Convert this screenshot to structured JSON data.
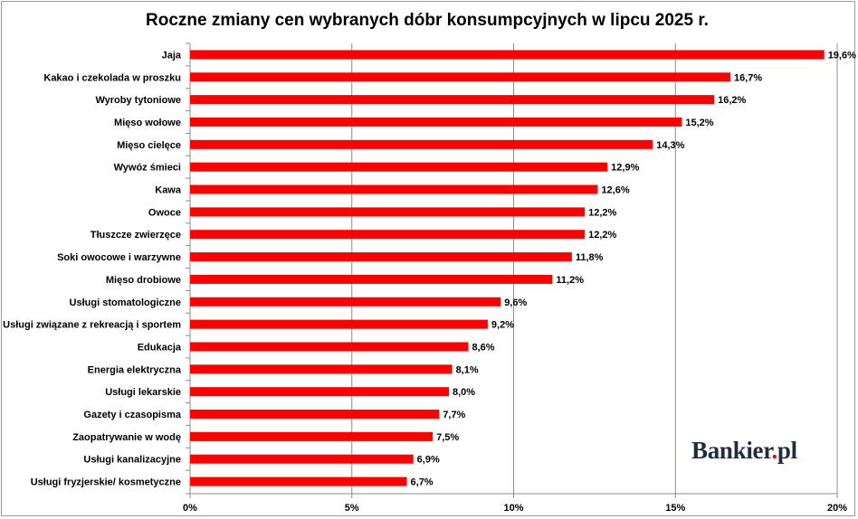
{
  "chart_data": {
    "type": "bar",
    "orientation": "horizontal",
    "title": "Roczne zmiany cen wybranych dóbr konsumpcyjnych w lipcu 2025 r.",
    "categories": [
      "Jaja",
      "Kakao i czekolada w proszku",
      "Wyroby tytoniowe",
      "Mięso wołowe",
      "Mięso cielęce",
      "Wywóz śmieci",
      "Kawa",
      "Owoce",
      "Tłuszcze zwierzęce",
      "Soki owocowe i warzywne",
      "Mięso drobiowe",
      "Usługi stomatologiczne",
      "Usługi związane z rekreacją i sportem",
      "Edukacja",
      "Energia elektryczna",
      "Usługi lekarskie",
      "Gazety i czasopisma",
      "Zaopatrywanie w wodę",
      "Usługi kanalizacyjne",
      "Usługi fryzjerskie/ kosmetyczne"
    ],
    "values": [
      19.6,
      16.7,
      16.2,
      15.2,
      14.3,
      12.9,
      12.6,
      12.2,
      12.2,
      11.8,
      11.2,
      9.6,
      9.2,
      8.6,
      8.1,
      8.0,
      7.7,
      7.5,
      6.9,
      6.7
    ],
    "value_labels": [
      "19,6%",
      "16,7%",
      "16,2%",
      "15,2%",
      "14,3%",
      "12,9%",
      "12,6%",
      "12,2%",
      "12,2%",
      "11,8%",
      "11,2%",
      "9,6%",
      "9,2%",
      "8,6%",
      "8,1%",
      "8,0%",
      "7,7%",
      "7,5%",
      "6,9%",
      "6,7%"
    ],
    "x_ticks": [
      0,
      5,
      10,
      15,
      20
    ],
    "x_tick_labels": [
      "0%",
      "5%",
      "10%",
      "15%",
      "20%"
    ],
    "xlim": [
      0,
      20
    ],
    "bar_color": "#ff0000",
    "grid": true
  },
  "logo": {
    "text_main": "Bankier",
    "text_dot": ".",
    "text_suffix": "pl"
  }
}
